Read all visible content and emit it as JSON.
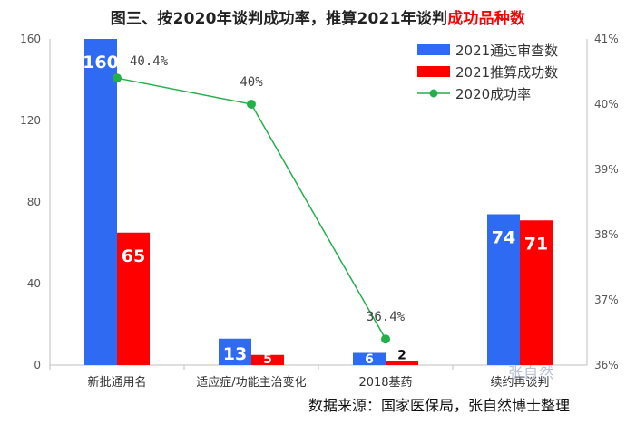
{
  "title": {
    "main": "图三、按2020年谈判成功率，推算2021年谈判",
    "highlight": "成功品种数"
  },
  "source": "数据来源：国家医保局，张自然博士整理",
  "watermark": "张自然",
  "chart_data": {
    "type": "bar",
    "categories": [
      "新批通用名",
      "适应症/功能主治变化",
      "2018基药",
      "续约再谈判"
    ],
    "series": [
      {
        "name": "2021通过审查数",
        "type": "bar",
        "axis": "left",
        "color": "#2e6bf2",
        "values": [
          160,
          13,
          6,
          74
        ],
        "value_labels": [
          "160",
          "13",
          "6",
          "74"
        ]
      },
      {
        "name": "2021推算成功数",
        "type": "bar",
        "axis": "left",
        "color": "#ff0000",
        "values": [
          65,
          5,
          2,
          71
        ],
        "value_labels": [
          "65",
          "5",
          "2",
          "71"
        ]
      },
      {
        "name": "2020成功率",
        "type": "line",
        "axis": "right",
        "color": "#22b04a",
        "values": [
          40.4,
          40.0,
          36.4,
          null
        ],
        "value_labels": [
          "40.4%",
          "40%",
          "36.4%",
          ""
        ]
      }
    ],
    "y_left": {
      "min": 0,
      "max": 160,
      "ticks": [
        0,
        40,
        80,
        120,
        160
      ]
    },
    "y_right": {
      "min": 36,
      "max": 41,
      "ticks": [
        36,
        37,
        38,
        39,
        40,
        41
      ],
      "tick_labels": [
        "36%",
        "37%",
        "38%",
        "39%",
        "40%",
        "41%"
      ]
    },
    "legend_position": "top-right",
    "grid": false
  }
}
